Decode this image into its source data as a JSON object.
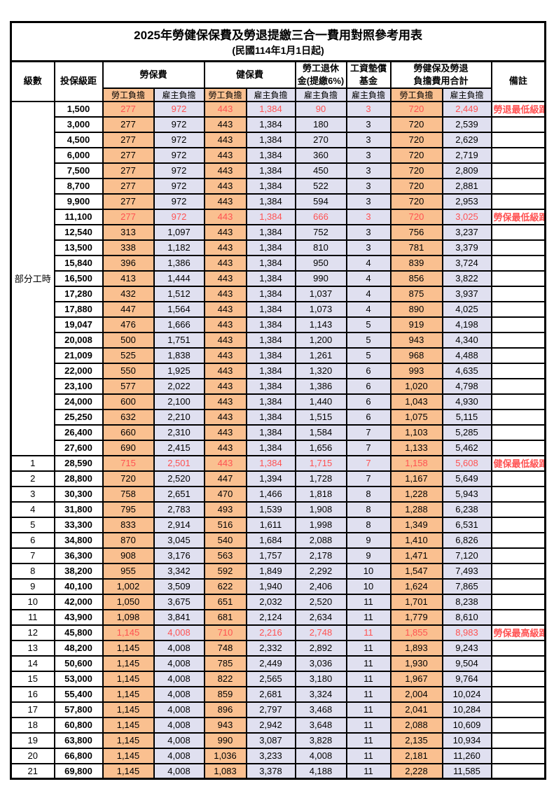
{
  "title": "2025年勞健保保費及勞退提繳三合一費用對照參考用表",
  "subtitle": "(民國114年1月1日起)",
  "colors": {
    "employee_bg": "#FAC090",
    "employer_bg": "#E0E0F0",
    "highlight_text": "#FF5252",
    "border": "#000000"
  },
  "header": {
    "level": "級數",
    "bracket": "投保級距",
    "labor_insurance": "勞保費",
    "health_insurance": "健保費",
    "pension_line1": "勞工退休",
    "pension_line2": "金(提繳6%)",
    "wage_fund_line1": "工資墊償",
    "wage_fund_line2": "基金",
    "total_line1": "勞健保及勞退",
    "total_line2": "負擔費用合計",
    "remark": "備註",
    "employee": "勞工負擔",
    "employer": "雇主負擔"
  },
  "part_time_label": "部分工時",
  "part_time_rowspan": 23,
  "rows": [
    {
      "level": "",
      "bracket": "1,500",
      "values": [
        "277",
        "972",
        "443",
        "1,384",
        "90",
        "3",
        "720",
        "2,449"
      ],
      "note": "勞退最低級距",
      "highlight": true
    },
    {
      "level": "",
      "bracket": "3,000",
      "values": [
        "277",
        "972",
        "443",
        "1,384",
        "180",
        "3",
        "720",
        "2,539"
      ],
      "note": "",
      "highlight": false
    },
    {
      "level": "",
      "bracket": "4,500",
      "values": [
        "277",
        "972",
        "443",
        "1,384",
        "270",
        "3",
        "720",
        "2,629"
      ],
      "note": "",
      "highlight": false
    },
    {
      "level": "",
      "bracket": "6,000",
      "values": [
        "277",
        "972",
        "443",
        "1,384",
        "360",
        "3",
        "720",
        "2,719"
      ],
      "note": "",
      "highlight": false
    },
    {
      "level": "",
      "bracket": "7,500",
      "values": [
        "277",
        "972",
        "443",
        "1,384",
        "450",
        "3",
        "720",
        "2,809"
      ],
      "note": "",
      "highlight": false
    },
    {
      "level": "",
      "bracket": "8,700",
      "values": [
        "277",
        "972",
        "443",
        "1,384",
        "522",
        "3",
        "720",
        "2,881"
      ],
      "note": "",
      "highlight": false
    },
    {
      "level": "",
      "bracket": "9,900",
      "values": [
        "277",
        "972",
        "443",
        "1,384",
        "594",
        "3",
        "720",
        "2,953"
      ],
      "note": "",
      "highlight": false
    },
    {
      "level": "",
      "bracket": "11,100",
      "values": [
        "277",
        "972",
        "443",
        "1,384",
        "666",
        "3",
        "720",
        "3,025"
      ],
      "note": "勞保最低級距",
      "highlight": true
    },
    {
      "level": "",
      "bracket": "12,540",
      "values": [
        "313",
        "1,097",
        "443",
        "1,384",
        "752",
        "3",
        "756",
        "3,237"
      ],
      "note": "",
      "highlight": false
    },
    {
      "level": "",
      "bracket": "13,500",
      "values": [
        "338",
        "1,182",
        "443",
        "1,384",
        "810",
        "3",
        "781",
        "3,379"
      ],
      "note": "",
      "highlight": false
    },
    {
      "level": "",
      "bracket": "15,840",
      "values": [
        "396",
        "1,386",
        "443",
        "1,384",
        "950",
        "4",
        "839",
        "3,724"
      ],
      "note": "",
      "highlight": false
    },
    {
      "level": "",
      "bracket": "16,500",
      "values": [
        "413",
        "1,444",
        "443",
        "1,384",
        "990",
        "4",
        "856",
        "3,822"
      ],
      "note": "",
      "highlight": false
    },
    {
      "level": "",
      "bracket": "17,280",
      "values": [
        "432",
        "1,512",
        "443",
        "1,384",
        "1,037",
        "4",
        "875",
        "3,937"
      ],
      "note": "",
      "highlight": false
    },
    {
      "level": "",
      "bracket": "17,880",
      "values": [
        "447",
        "1,564",
        "443",
        "1,384",
        "1,073",
        "4",
        "890",
        "4,025"
      ],
      "note": "",
      "highlight": false
    },
    {
      "level": "",
      "bracket": "19,047",
      "values": [
        "476",
        "1,666",
        "443",
        "1,384",
        "1,143",
        "5",
        "919",
        "4,198"
      ],
      "note": "",
      "highlight": false
    },
    {
      "level": "",
      "bracket": "20,008",
      "values": [
        "500",
        "1,751",
        "443",
        "1,384",
        "1,200",
        "5",
        "943",
        "4,340"
      ],
      "note": "",
      "highlight": false
    },
    {
      "level": "",
      "bracket": "21,009",
      "values": [
        "525",
        "1,838",
        "443",
        "1,384",
        "1,261",
        "5",
        "968",
        "4,488"
      ],
      "note": "",
      "highlight": false
    },
    {
      "level": "",
      "bracket": "22,000",
      "values": [
        "550",
        "1,925",
        "443",
        "1,384",
        "1,320",
        "6",
        "993",
        "4,635"
      ],
      "note": "",
      "highlight": false
    },
    {
      "level": "",
      "bracket": "23,100",
      "values": [
        "577",
        "2,022",
        "443",
        "1,384",
        "1,386",
        "6",
        "1,020",
        "4,798"
      ],
      "note": "",
      "highlight": false
    },
    {
      "level": "",
      "bracket": "24,000",
      "values": [
        "600",
        "2,100",
        "443",
        "1,384",
        "1,440",
        "6",
        "1,043",
        "4,930"
      ],
      "note": "",
      "highlight": false
    },
    {
      "level": "",
      "bracket": "25,250",
      "values": [
        "632",
        "2,210",
        "443",
        "1,384",
        "1,515",
        "6",
        "1,075",
        "5,115"
      ],
      "note": "",
      "highlight": false
    },
    {
      "level": "",
      "bracket": "26,400",
      "values": [
        "660",
        "2,310",
        "443",
        "1,384",
        "1,584",
        "7",
        "1,103",
        "5,285"
      ],
      "note": "",
      "highlight": false
    },
    {
      "level": "",
      "bracket": "27,600",
      "values": [
        "690",
        "2,415",
        "443",
        "1,384",
        "1,656",
        "7",
        "1,133",
        "5,462"
      ],
      "note": "",
      "highlight": false
    },
    {
      "level": "1",
      "bracket": "28,590",
      "values": [
        "715",
        "2,501",
        "443",
        "1,384",
        "1,715",
        "7",
        "1,158",
        "5,608"
      ],
      "note": "健保最低級距",
      "highlight": true
    },
    {
      "level": "2",
      "bracket": "28,800",
      "values": [
        "720",
        "2,520",
        "447",
        "1,394",
        "1,728",
        "7",
        "1,167",
        "5,649"
      ],
      "note": "",
      "highlight": false
    },
    {
      "level": "3",
      "bracket": "30,300",
      "values": [
        "758",
        "2,651",
        "470",
        "1,466",
        "1,818",
        "8",
        "1,228",
        "5,943"
      ],
      "note": "",
      "highlight": false
    },
    {
      "level": "4",
      "bracket": "31,800",
      "values": [
        "795",
        "2,783",
        "493",
        "1,539",
        "1,908",
        "8",
        "1,288",
        "6,238"
      ],
      "note": "",
      "highlight": false
    },
    {
      "level": "5",
      "bracket": "33,300",
      "values": [
        "833",
        "2,914",
        "516",
        "1,611",
        "1,998",
        "8",
        "1,349",
        "6,531"
      ],
      "note": "",
      "highlight": false
    },
    {
      "level": "6",
      "bracket": "34,800",
      "values": [
        "870",
        "3,045",
        "540",
        "1,684",
        "2,088",
        "9",
        "1,410",
        "6,826"
      ],
      "note": "",
      "highlight": false
    },
    {
      "level": "7",
      "bracket": "36,300",
      "values": [
        "908",
        "3,176",
        "563",
        "1,757",
        "2,178",
        "9",
        "1,471",
        "7,120"
      ],
      "note": "",
      "highlight": false
    },
    {
      "level": "8",
      "bracket": "38,200",
      "values": [
        "955",
        "3,342",
        "592",
        "1,849",
        "2,292",
        "10",
        "1,547",
        "7,493"
      ],
      "note": "",
      "highlight": false
    },
    {
      "level": "9",
      "bracket": "40,100",
      "values": [
        "1,002",
        "3,509",
        "622",
        "1,940",
        "2,406",
        "10",
        "1,624",
        "7,865"
      ],
      "note": "",
      "highlight": false
    },
    {
      "level": "10",
      "bracket": "42,000",
      "values": [
        "1,050",
        "3,675",
        "651",
        "2,032",
        "2,520",
        "11",
        "1,701",
        "8,238"
      ],
      "note": "",
      "highlight": false
    },
    {
      "level": "11",
      "bracket": "43,900",
      "values": [
        "1,098",
        "3,841",
        "681",
        "2,124",
        "2,634",
        "11",
        "1,779",
        "8,610"
      ],
      "note": "",
      "highlight": false
    },
    {
      "level": "12",
      "bracket": "45,800",
      "values": [
        "1,145",
        "4,008",
        "710",
        "2,216",
        "2,748",
        "11",
        "1,855",
        "8,983"
      ],
      "note": "勞保最高級距",
      "highlight": true
    },
    {
      "level": "13",
      "bracket": "48,200",
      "values": [
        "1,145",
        "4,008",
        "748",
        "2,332",
        "2,892",
        "11",
        "1,893",
        "9,243"
      ],
      "note": "",
      "highlight": false
    },
    {
      "level": "14",
      "bracket": "50,600",
      "values": [
        "1,145",
        "4,008",
        "785",
        "2,449",
        "3,036",
        "11",
        "1,930",
        "9,504"
      ],
      "note": "",
      "highlight": false
    },
    {
      "level": "15",
      "bracket": "53,000",
      "values": [
        "1,145",
        "4,008",
        "822",
        "2,565",
        "3,180",
        "11",
        "1,967",
        "9,764"
      ],
      "note": "",
      "highlight": false
    },
    {
      "level": "16",
      "bracket": "55,400",
      "values": [
        "1,145",
        "4,008",
        "859",
        "2,681",
        "3,324",
        "11",
        "2,004",
        "10,024"
      ],
      "note": "",
      "highlight": false
    },
    {
      "level": "17",
      "bracket": "57,800",
      "values": [
        "1,145",
        "4,008",
        "896",
        "2,797",
        "3,468",
        "11",
        "2,041",
        "10,284"
      ],
      "note": "",
      "highlight": false
    },
    {
      "level": "18",
      "bracket": "60,800",
      "values": [
        "1,145",
        "4,008",
        "943",
        "2,942",
        "3,648",
        "11",
        "2,088",
        "10,609"
      ],
      "note": "",
      "highlight": false
    },
    {
      "level": "19",
      "bracket": "63,800",
      "values": [
        "1,145",
        "4,008",
        "990",
        "3,087",
        "3,828",
        "11",
        "2,135",
        "10,934"
      ],
      "note": "",
      "highlight": false
    },
    {
      "level": "20",
      "bracket": "66,800",
      "values": [
        "1,145",
        "4,008",
        "1,036",
        "3,233",
        "4,008",
        "11",
        "2,181",
        "11,260"
      ],
      "note": "",
      "highlight": false
    },
    {
      "level": "21",
      "bracket": "69,800",
      "values": [
        "1,145",
        "4,008",
        "1,083",
        "3,378",
        "4,188",
        "11",
        "2,228",
        "11,585"
      ],
      "note": "",
      "highlight": false
    }
  ],
  "value_column_keys": [
    "labor-employee",
    "labor-employer",
    "health-employee",
    "health-employer",
    "pension-employer",
    "wage-fund-employer",
    "total-employee",
    "total-employer"
  ],
  "value_column_types": [
    "emp",
    "er",
    "emp",
    "er",
    "er",
    "er",
    "emp",
    "er"
  ]
}
